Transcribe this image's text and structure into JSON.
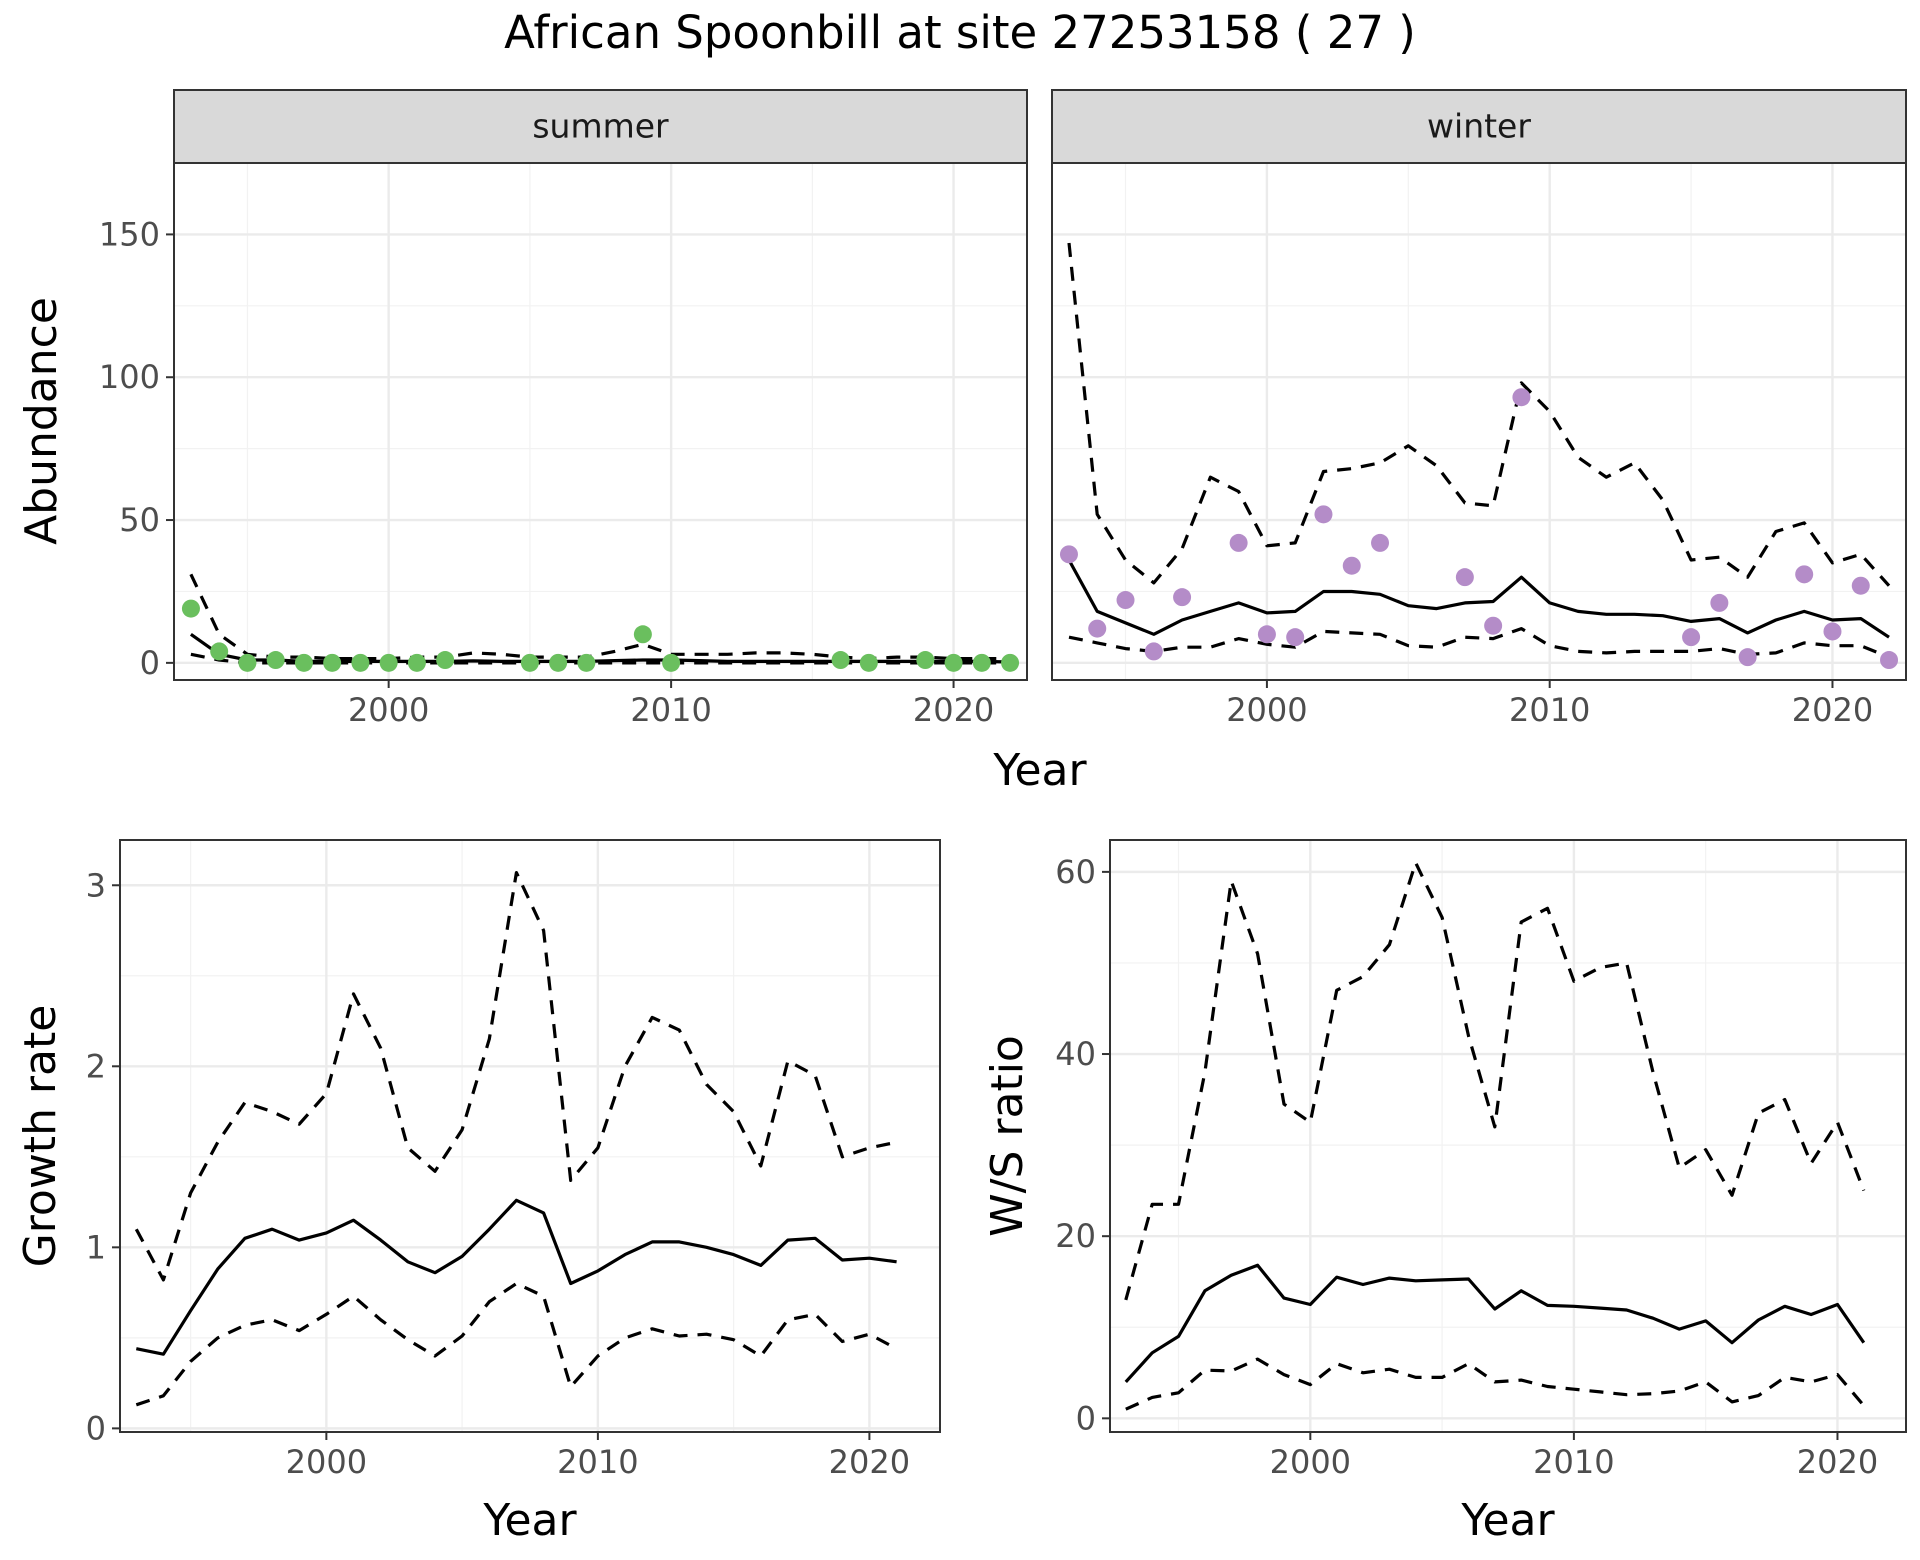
{
  "title": "African Spoonbill at site 27253158 ( 27 )",
  "colors": {
    "summer_points": "#6abf5e",
    "winter_points": "#b48cc8",
    "lines": "#000000"
  },
  "chart_data": [
    {
      "type": "line",
      "facet": "summer",
      "xlabel": "Year",
      "ylabel": "Abundance",
      "xlim": [
        1992.4,
        2022.6
      ],
      "ylim": [
        -6,
        175
      ],
      "xticks": [
        2000,
        2010,
        2020
      ],
      "yticks": [
        0,
        50,
        100,
        150
      ],
      "grid": true,
      "series": [
        {
          "role": "upper",
          "x": [
            1993,
            1994,
            1995,
            1996,
            1997,
            1998,
            1999,
            2000,
            2001,
            2002,
            2003,
            2004,
            2005,
            2006,
            2007,
            2008,
            2009,
            2010,
            2011,
            2012,
            2013,
            2014,
            2015,
            2016,
            2017,
            2018,
            2019,
            2020,
            2021,
            2022
          ],
          "values": [
            31,
            10,
            3,
            2,
            2,
            1.5,
            1.5,
            1.5,
            2,
            2,
            3.5,
            3,
            2,
            2,
            2,
            4,
            6.5,
            3,
            3,
            3,
            3.5,
            3.5,
            3,
            2,
            1.5,
            2,
            2,
            1.5,
            1.5,
            1.5
          ]
        },
        {
          "role": "mean",
          "x": [
            1993,
            1994,
            1995,
            1996,
            1997,
            1998,
            1999,
            2000,
            2001,
            2002,
            2003,
            2004,
            2005,
            2006,
            2007,
            2008,
            2009,
            2010,
            2011,
            2012,
            2013,
            2014,
            2015,
            2016,
            2017,
            2018,
            2019,
            2020,
            2021,
            2022
          ],
          "values": [
            10,
            3,
            1,
            1,
            0.5,
            0.5,
            0.5,
            0.5,
            0.5,
            0.5,
            0.7,
            0.5,
            0.5,
            0.5,
            0.5,
            0.8,
            1,
            1,
            0.8,
            0.5,
            0.5,
            0.5,
            0.5,
            0.5,
            0.5,
            0.5,
            0.5,
            0.5,
            0.5,
            0.3
          ]
        },
        {
          "role": "lower",
          "x": [
            1993,
            1994,
            1995,
            1996,
            1997,
            1998,
            1999,
            2000,
            2001,
            2002,
            2003,
            2004,
            2005,
            2006,
            2007,
            2008,
            2009,
            2010,
            2011,
            2012,
            2013,
            2014,
            2015,
            2016,
            2017,
            2018,
            2019,
            2020,
            2021,
            2022
          ],
          "values": [
            3,
            1,
            0,
            0,
            0,
            0,
            0,
            0,
            0,
            0,
            0,
            0,
            0,
            0,
            0,
            0,
            0,
            0,
            0,
            0,
            0,
            0,
            0,
            0,
            0,
            0,
            0,
            0,
            0,
            0
          ]
        }
      ],
      "points": {
        "x": [
          1993,
          1994,
          1995,
          1996,
          1997,
          1998,
          1999,
          2000,
          2001,
          2002,
          2005,
          2006,
          2007,
          2009,
          2010,
          2016,
          2017,
          2019,
          2020,
          2021,
          2022
        ],
        "values": [
          19,
          4,
          0,
          1,
          0,
          0,
          0,
          0,
          0,
          1,
          0,
          0,
          0,
          10,
          0,
          1,
          0,
          1,
          0,
          0,
          0
        ]
      }
    },
    {
      "type": "line",
      "facet": "winter",
      "xlabel": "Year",
      "ylabel": "Abundance",
      "xlim": [
        1992.4,
        2022.6
      ],
      "ylim": [
        -6,
        175
      ],
      "xticks": [
        2000,
        2010,
        2020
      ],
      "grid": true,
      "series": [
        {
          "role": "upper",
          "x": [
            1993,
            1994,
            1995,
            1996,
            1997,
            1998,
            1999,
            2000,
            2001,
            2002,
            2003,
            2004,
            2005,
            2006,
            2007,
            2008,
            2009,
            2010,
            2011,
            2012,
            2013,
            2014,
            2015,
            2016,
            2017,
            2018,
            2019,
            2020,
            2021,
            2022
          ],
          "values": [
            147,
            52,
            36,
            28,
            40,
            65,
            60,
            41,
            42,
            67,
            68,
            70,
            76,
            69,
            56,
            55,
            98,
            88,
            72,
            65,
            70,
            57,
            36,
            37,
            30,
            46,
            49,
            35,
            38,
            27
          ]
        },
        {
          "role": "mean",
          "x": [
            1993,
            1994,
            1995,
            1996,
            1997,
            1998,
            1999,
            2000,
            2001,
            2002,
            2003,
            2004,
            2005,
            2006,
            2007,
            2008,
            2009,
            2010,
            2011,
            2012,
            2013,
            2014,
            2015,
            2016,
            2017,
            2018,
            2019,
            2020,
            2021,
            2022
          ],
          "values": [
            36,
            18,
            14,
            10,
            15,
            18,
            21,
            17.5,
            18,
            25,
            25,
            24,
            20,
            19,
            21,
            21.5,
            30,
            21,
            18,
            17,
            17,
            16.5,
            14.5,
            15.5,
            10.5,
            15,
            18,
            15,
            15.5,
            9
          ]
        },
        {
          "role": "lower",
          "x": [
            1993,
            1994,
            1995,
            1996,
            1997,
            1998,
            1999,
            2000,
            2001,
            2002,
            2003,
            2004,
            2005,
            2006,
            2007,
            2008,
            2009,
            2010,
            2011,
            2012,
            2013,
            2014,
            2015,
            2016,
            2017,
            2018,
            2019,
            2020,
            2021,
            2022
          ],
          "values": [
            9,
            7,
            5,
            4,
            5.5,
            5.5,
            8.5,
            6.5,
            5.5,
            11,
            10.5,
            10,
            6,
            5.5,
            9,
            8.5,
            12,
            6,
            4,
            3.5,
            4,
            4,
            4,
            5,
            3,
            3.5,
            7,
            6,
            6,
            2
          ]
        }
      ],
      "points": {
        "x": [
          1993,
          1994,
          1995,
          1996,
          1997,
          1999,
          2000,
          2001,
          2002,
          2003,
          2004,
          2007,
          2008,
          2009,
          2015,
          2016,
          2017,
          2019,
          2020,
          2021,
          2022
        ],
        "values": [
          38,
          12,
          22,
          4,
          23,
          42,
          10,
          9,
          52,
          34,
          42,
          30,
          13,
          93,
          9,
          21,
          2,
          31,
          11,
          27,
          1
        ]
      }
    },
    {
      "type": "line",
      "xlabel": "Year",
      "ylabel": "Growth rate",
      "xlim": [
        1992.4,
        2022.6
      ],
      "ylim": [
        -0.02,
        3.25
      ],
      "xticks": [
        2000,
        2010,
        2020
      ],
      "yticks": [
        0,
        1,
        2,
        3
      ],
      "grid": true,
      "series": [
        {
          "role": "upper",
          "x": [
            1993,
            1994,
            1995,
            1996,
            1997,
            1998,
            1999,
            2000,
            2001,
            2002,
            2003,
            2004,
            2005,
            2006,
            2007,
            2008,
            2009,
            2010,
            2011,
            2012,
            2013,
            2014,
            2015,
            2016,
            2017,
            2018,
            2019,
            2020,
            2021
          ],
          "values": [
            1.1,
            0.82,
            1.3,
            1.58,
            1.8,
            1.75,
            1.68,
            1.85,
            2.4,
            2.1,
            1.55,
            1.42,
            1.65,
            2.15,
            3.07,
            2.75,
            1.37,
            1.55,
            2.0,
            2.27,
            2.2,
            1.9,
            1.75,
            1.45,
            2.03,
            1.95,
            1.5,
            1.55,
            1.58
          ]
        },
        {
          "role": "mean",
          "x": [
            1993,
            1994,
            1995,
            1996,
            1997,
            1998,
            1999,
            2000,
            2001,
            2002,
            2003,
            2004,
            2005,
            2006,
            2007,
            2008,
            2009,
            2010,
            2011,
            2012,
            2013,
            2014,
            2015,
            2016,
            2017,
            2018,
            2019,
            2020,
            2021
          ],
          "values": [
            0.44,
            0.41,
            0.65,
            0.88,
            1.05,
            1.1,
            1.04,
            1.08,
            1.15,
            1.04,
            0.92,
            0.86,
            0.95,
            1.1,
            1.26,
            1.19,
            0.8,
            0.87,
            0.96,
            1.03,
            1.03,
            1.0,
            0.96,
            0.9,
            1.04,
            1.05,
            0.93,
            0.94,
            0.92
          ]
        },
        {
          "role": "lower",
          "x": [
            1993,
            1994,
            1995,
            1996,
            1997,
            1998,
            1999,
            2000,
            2001,
            2002,
            2003,
            2004,
            2005,
            2006,
            2007,
            2008,
            2009,
            2010,
            2011,
            2012,
            2013,
            2014,
            2015,
            2016,
            2017,
            2018,
            2019,
            2020,
            2021
          ],
          "values": [
            0.13,
            0.18,
            0.37,
            0.5,
            0.57,
            0.6,
            0.54,
            0.63,
            0.73,
            0.6,
            0.49,
            0.4,
            0.51,
            0.7,
            0.8,
            0.73,
            0.23,
            0.4,
            0.5,
            0.55,
            0.51,
            0.52,
            0.49,
            0.4,
            0.6,
            0.63,
            0.48,
            0.52,
            0.44
          ]
        }
      ]
    },
    {
      "type": "line",
      "xlabel": "Year",
      "ylabel": "W/S ratio",
      "xlim": [
        1992.4,
        2022.6
      ],
      "ylim": [
        -1.5,
        63.5
      ],
      "xticks": [
        2000,
        2010,
        2020
      ],
      "yticks": [
        0,
        20,
        40,
        60
      ],
      "grid": true,
      "series": [
        {
          "role": "upper",
          "x": [
            1993,
            1994,
            1995,
            1996,
            1997,
            1998,
            1999,
            2000,
            2001,
            2002,
            2003,
            2004,
            2005,
            2006,
            2007,
            2008,
            2009,
            2010,
            2011,
            2012,
            2013,
            2014,
            2015,
            2016,
            2017,
            2018,
            2019,
            2020,
            2021
          ],
          "values": [
            13,
            23.5,
            23.5,
            38,
            59,
            51,
            34.5,
            32.5,
            47,
            48.5,
            52,
            61,
            55,
            42,
            32,
            54.5,
            56,
            48,
            49.5,
            50,
            38,
            27.5,
            29.5,
            24.5,
            33.5,
            35,
            28,
            32.5,
            25
          ]
        },
        {
          "role": "mean",
          "x": [
            1993,
            1994,
            1995,
            1996,
            1997,
            1998,
            1999,
            2000,
            2001,
            2002,
            2003,
            2004,
            2005,
            2006,
            2007,
            2008,
            2009,
            2010,
            2011,
            2012,
            2013,
            2014,
            2015,
            2016,
            2017,
            2018,
            2019,
            2020,
            2021
          ],
          "values": [
            4,
            7.2,
            9,
            14,
            15.7,
            16.8,
            13.2,
            12.5,
            15.5,
            14.7,
            15.4,
            15.1,
            15.2,
            15.3,
            12,
            14,
            12.4,
            12.3,
            12.1,
            11.9,
            11,
            9.8,
            10.7,
            8.3,
            10.8,
            12.3,
            11.4,
            12.5,
            8.3
          ]
        },
        {
          "role": "lower",
          "x": [
            1993,
            1994,
            1995,
            1996,
            1997,
            1998,
            1999,
            2000,
            2001,
            2002,
            2003,
            2004,
            2005,
            2006,
            2007,
            2008,
            2009,
            2010,
            2011,
            2012,
            2013,
            2014,
            2015,
            2016,
            2017,
            2018,
            2019,
            2020,
            2021
          ],
          "values": [
            1,
            2.3,
            2.8,
            5.3,
            5.2,
            6.5,
            4.8,
            3.7,
            6,
            5,
            5.4,
            4.5,
            4.5,
            6,
            4,
            4.2,
            3.5,
            3.2,
            2.9,
            2.6,
            2.7,
            3,
            4,
            1.8,
            2.5,
            4.5,
            4,
            4.8,
            1.4
          ]
        }
      ]
    }
  ]
}
